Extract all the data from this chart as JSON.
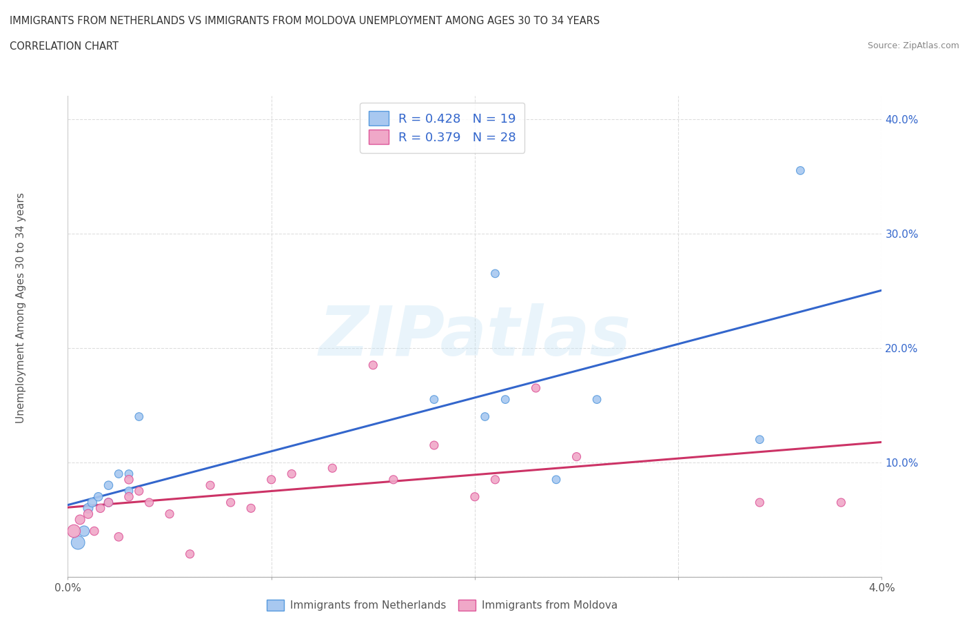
{
  "title_line1": "IMMIGRANTS FROM NETHERLANDS VS IMMIGRANTS FROM MOLDOVA UNEMPLOYMENT AMONG AGES 30 TO 34 YEARS",
  "title_line2": "CORRELATION CHART",
  "source_text": "Source: ZipAtlas.com",
  "ylabel": "Unemployment Among Ages 30 to 34 years",
  "xlim": [
    0.0,
    0.04
  ],
  "ylim": [
    0.0,
    0.42
  ],
  "xticks": [
    0.0,
    0.01,
    0.02,
    0.03,
    0.04
  ],
  "yticks": [
    0.0,
    0.1,
    0.2,
    0.3,
    0.4
  ],
  "netherlands_color": "#a8c8f0",
  "netherlands_edge_color": "#5599dd",
  "moldova_color": "#f0a8c8",
  "moldova_edge_color": "#dd5599",
  "netherlands_line_color": "#3366cc",
  "moldova_line_color": "#cc3366",
  "legend_text_color": "#3366cc",
  "R_netherlands": 0.428,
  "N_netherlands": 19,
  "R_moldova": 0.379,
  "N_moldova": 28,
  "netherlands_x": [
    0.0005,
    0.0008,
    0.001,
    0.0012,
    0.0015,
    0.002,
    0.002,
    0.0025,
    0.003,
    0.003,
    0.0035,
    0.018,
    0.0205,
    0.021,
    0.0215,
    0.024,
    0.026,
    0.034,
    0.036
  ],
  "netherlands_y": [
    0.03,
    0.04,
    0.06,
    0.065,
    0.07,
    0.065,
    0.08,
    0.09,
    0.075,
    0.09,
    0.14,
    0.155,
    0.14,
    0.265,
    0.155,
    0.085,
    0.155,
    0.12,
    0.355
  ],
  "netherlands_sizes": [
    200,
    120,
    100,
    90,
    80,
    80,
    80,
    70,
    70,
    70,
    70,
    70,
    70,
    70,
    70,
    70,
    70,
    70,
    70
  ],
  "moldova_x": [
    0.0003,
    0.0006,
    0.001,
    0.0013,
    0.0016,
    0.002,
    0.0025,
    0.003,
    0.003,
    0.0035,
    0.004,
    0.005,
    0.006,
    0.007,
    0.008,
    0.009,
    0.01,
    0.011,
    0.013,
    0.015,
    0.016,
    0.018,
    0.02,
    0.021,
    0.023,
    0.025,
    0.034,
    0.038
  ],
  "moldova_y": [
    0.04,
    0.05,
    0.055,
    0.04,
    0.06,
    0.065,
    0.035,
    0.07,
    0.085,
    0.075,
    0.065,
    0.055,
    0.02,
    0.08,
    0.065,
    0.06,
    0.085,
    0.09,
    0.095,
    0.185,
    0.085,
    0.115,
    0.07,
    0.085,
    0.165,
    0.105,
    0.065,
    0.065
  ],
  "moldova_sizes": [
    180,
    100,
    90,
    80,
    80,
    80,
    80,
    80,
    80,
    75,
    75,
    75,
    75,
    75,
    75,
    75,
    75,
    75,
    75,
    75,
    75,
    75,
    75,
    75,
    75,
    75,
    75,
    75
  ],
  "watermark": "ZIPatlas",
  "bg_color": "#ffffff",
  "grid_color": "#dddddd",
  "legend_label_netherlands": "Immigrants from Netherlands",
  "legend_label_moldova": "Immigrants from Moldova"
}
